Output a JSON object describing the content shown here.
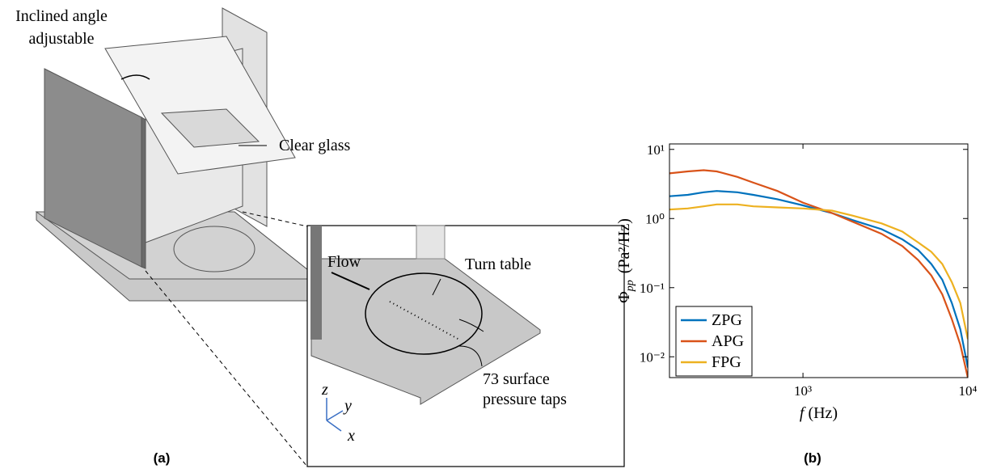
{
  "panel_a": {
    "caption": "(a)",
    "labels": {
      "inclined": [
        "Inclined angle",
        "adjustable"
      ],
      "glass": "Clear glass",
      "flow": "Flow",
      "turn_table": "Turn table",
      "taps": [
        "73 surface",
        "pressure taps"
      ],
      "axes": [
        "z",
        "y",
        "x"
      ]
    }
  },
  "panel_b": {
    "caption": "(b)"
  },
  "chart_data": {
    "type": "line",
    "xlabel": {
      "symbol": "f",
      "unit": "(Hz)"
    },
    "ylabel": {
      "symbol": "Φ",
      "subscript": "pp",
      "unit": "(Pa²/Hz)"
    },
    "xscale": "log",
    "yscale": "log",
    "xlim": [
      155,
      10000
    ],
    "ylim": [
      0.005,
      12
    ],
    "xticks": [
      {
        "value": 1000,
        "label": "10³"
      },
      {
        "value": 10000,
        "label": "10⁴"
      }
    ],
    "yticks": [
      {
        "value": 0.01,
        "label": "10⁻²"
      },
      {
        "value": 0.1,
        "label": "10⁻¹"
      },
      {
        "value": 1,
        "label": "10⁰"
      },
      {
        "value": 10,
        "label": "10¹"
      }
    ],
    "legend": "lower left",
    "x": [
      155,
      200,
      250,
      300,
      400,
      500,
      700,
      1000,
      1500,
      2000,
      3000,
      4000,
      5000,
      6000,
      7000,
      8000,
      9000,
      10000
    ],
    "series": [
      {
        "name": "ZPG",
        "color": "#0072BD",
        "values": [
          2.1,
          2.2,
          2.4,
          2.5,
          2.4,
          2.2,
          1.9,
          1.55,
          1.2,
          0.95,
          0.7,
          0.5,
          0.35,
          0.22,
          0.13,
          0.06,
          0.025,
          0.007
        ]
      },
      {
        "name": "APG",
        "color": "#D95319",
        "values": [
          4.5,
          4.8,
          5.0,
          4.8,
          4.0,
          3.3,
          2.5,
          1.7,
          1.2,
          0.9,
          0.6,
          0.4,
          0.25,
          0.15,
          0.08,
          0.035,
          0.015,
          0.005
        ]
      },
      {
        "name": "FPG",
        "color": "#EDB120",
        "values": [
          1.35,
          1.4,
          1.5,
          1.6,
          1.6,
          1.5,
          1.45,
          1.4,
          1.3,
          1.1,
          0.85,
          0.65,
          0.45,
          0.33,
          0.22,
          0.12,
          0.06,
          0.018
        ]
      }
    ]
  }
}
